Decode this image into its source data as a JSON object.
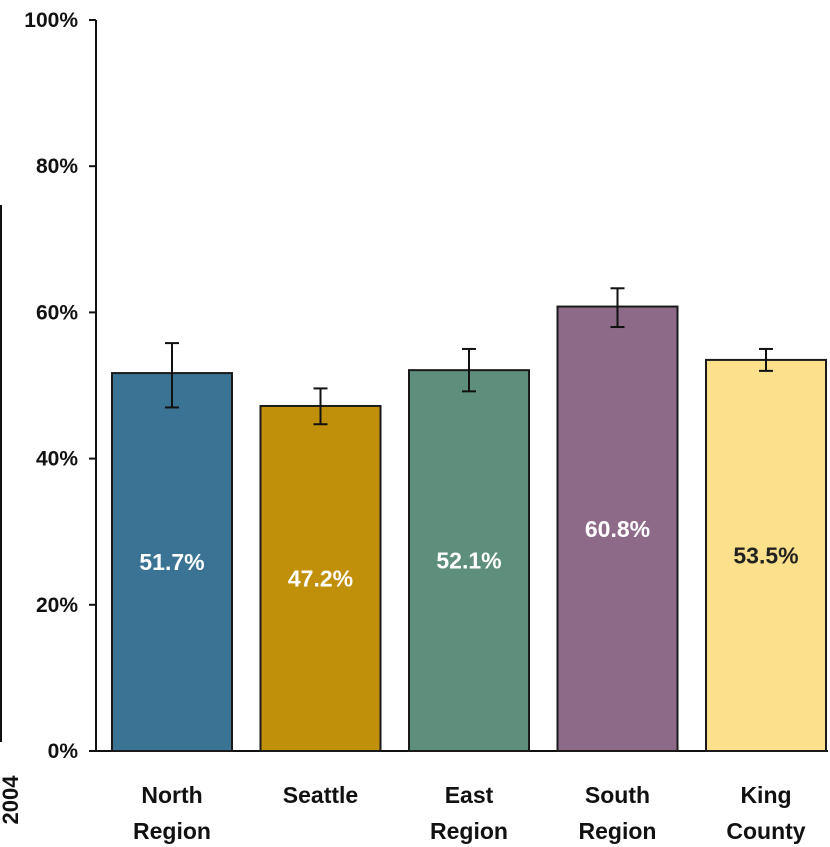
{
  "chart_data": {
    "type": "bar",
    "categories": [
      [
        "North",
        "Region"
      ],
      [
        "Seattle"
      ],
      [
        "East",
        "Region"
      ],
      [
        "South",
        "Region"
      ],
      [
        "King",
        "County"
      ]
    ],
    "values": [
      51.7,
      47.2,
      52.1,
      60.8,
      53.5
    ],
    "value_labels": [
      "51.7%",
      "47.2%",
      "52.1%",
      "60.8%",
      "53.5%"
    ],
    "error_bars": [
      {
        "low": 47.0,
        "high": 55.8
      },
      {
        "low": 44.7,
        "high": 49.6
      },
      {
        "low": 49.2,
        "high": 55.0
      },
      {
        "low": 58.0,
        "high": 63.3
      },
      {
        "low": 52.0,
        "high": 55.0
      }
    ],
    "colors": [
      "#3a7394",
      "#c1900a",
      "#5e8f7c",
      "#8c6a88",
      "#fde08c"
    ],
    "label_colors": [
      "#ffffff",
      "#ffffff",
      "#ffffff",
      "#ffffff",
      "#222222"
    ],
    "ylim": [
      0,
      100
    ],
    "yticks": [
      0,
      20,
      40,
      60,
      80,
      100
    ],
    "ytick_labels": [
      "0%",
      "20%",
      "40%",
      "60%",
      "80%",
      "100%"
    ],
    "side_text": "2004",
    "grid": false
  }
}
